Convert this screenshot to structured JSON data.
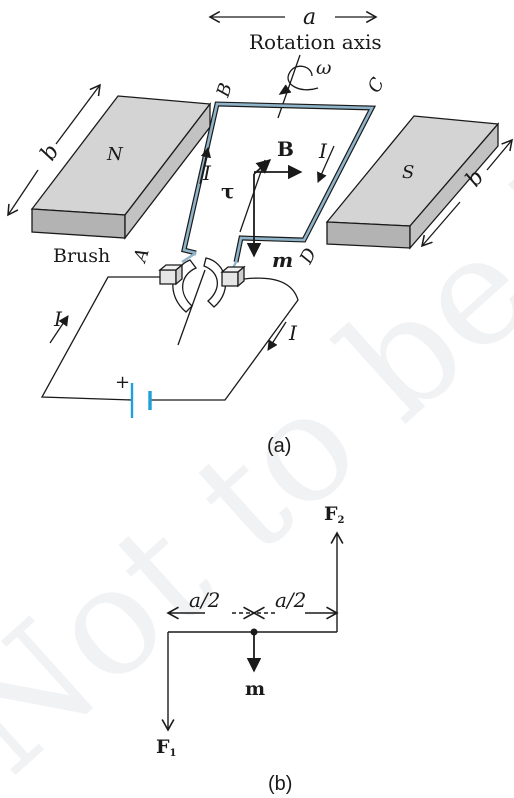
{
  "diagram_a": {
    "axis_label": "Rotation axis",
    "width_label": "a",
    "omega_label": "ω",
    "corner_a": "A",
    "corner_b": "B",
    "corner_c": "C",
    "corner_d": "D",
    "field_label": "B",
    "torque_label": "τ",
    "moment_label": "m",
    "current_label": "I",
    "north_label": "N",
    "south_label": "S",
    "depth_label": "b",
    "brush_label": "Brush",
    "plus_label": "+",
    "caption": "(a)"
  },
  "diagram_b": {
    "force_top": "F",
    "force_top_sub": "2",
    "force_bottom": "F",
    "force_bottom_sub": "1",
    "half_label": "a/2",
    "moment_label": "m",
    "caption": "(b)"
  },
  "watermark": "Not to be Republished",
  "colors": {
    "ink": "#1a1a1a",
    "magnet_top": "#d4d4d4",
    "magnet_side": "#b3b3b3",
    "coil": "#8fb3c9",
    "battery": "#1fa0d8",
    "watermark": "#f1f2f4"
  }
}
